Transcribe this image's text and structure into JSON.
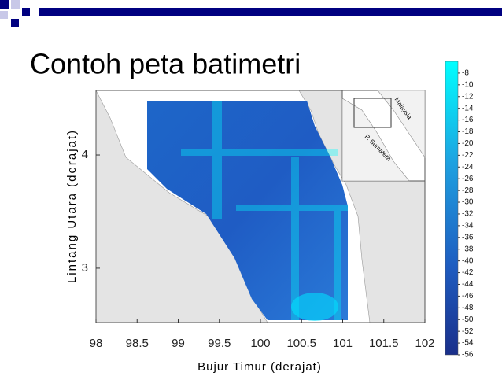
{
  "title": "Contoh peta batimetri",
  "map": {
    "x_label": "Bujur Timur (derajat)",
    "y_label": "Lintang Utara (derajat)",
    "xlim": [
      98,
      102
    ],
    "ylim": [
      2.52,
      4.57
    ],
    "xticks": [
      98,
      98.5,
      99,
      99.5,
      100,
      100.5,
      101,
      101.5,
      102
    ],
    "yticks": [
      3,
      4
    ]
  },
  "inset": {
    "labels": [
      "Malaysia",
      "P. Sumatera"
    ]
  },
  "colorbar": {
    "clim": [
      -6,
      -56
    ],
    "ticks": [
      -8,
      -10,
      -12,
      -14,
      -16,
      -18,
      -20,
      -22,
      -24,
      -26,
      -28,
      -30,
      -32,
      -34,
      -36,
      -38,
      -40,
      -42,
      -44,
      -46,
      -48,
      -50,
      -52,
      -54,
      -56
    ]
  }
}
